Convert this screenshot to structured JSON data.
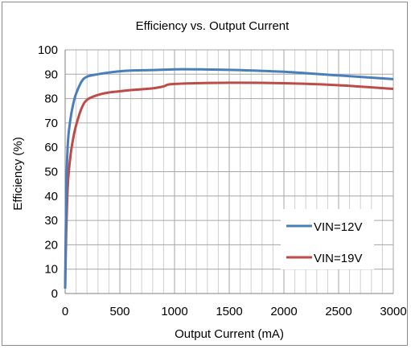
{
  "chart_data": {
    "type": "line",
    "title": "Efficiency vs. Output Current",
    "xlabel": "Output Current (mA)",
    "ylabel": "Efficiency (%)",
    "xlim": [
      0,
      3000
    ],
    "ylim": [
      0,
      100
    ],
    "x_ticks": [
      0,
      500,
      1000,
      1500,
      2000,
      2500,
      3000
    ],
    "y_ticks": [
      0,
      10,
      20,
      30,
      40,
      50,
      60,
      70,
      80,
      90,
      100
    ],
    "grid": true,
    "legend_position": "bottom-right",
    "series": [
      {
        "name": "VIN=12V",
        "color": "#4a7ebb",
        "x": [
          0,
          10,
          25,
          50,
          75,
          100,
          150,
          200,
          300,
          400,
          500,
          600,
          800,
          1000,
          1200,
          1500,
          2000,
          2500,
          3000
        ],
        "y": [
          2,
          40,
          62,
          72,
          78,
          82,
          87,
          89,
          90,
          90.7,
          91.2,
          91.5,
          91.7,
          92,
          92,
          91.8,
          91,
          89.5,
          88
        ]
      },
      {
        "name": "VIN=19V",
        "color": "#be4b48",
        "x": [
          0,
          10,
          25,
          50,
          75,
          100,
          150,
          200,
          300,
          400,
          500,
          600,
          800,
          900,
          1000,
          1500,
          2000,
          2500,
          3000
        ],
        "y": [
          2,
          25,
          45,
          57,
          64,
          69,
          76,
          79.5,
          81.5,
          82.5,
          83,
          83.5,
          84.2,
          85,
          86,
          86.5,
          86.3,
          85.5,
          84
        ]
      }
    ]
  }
}
